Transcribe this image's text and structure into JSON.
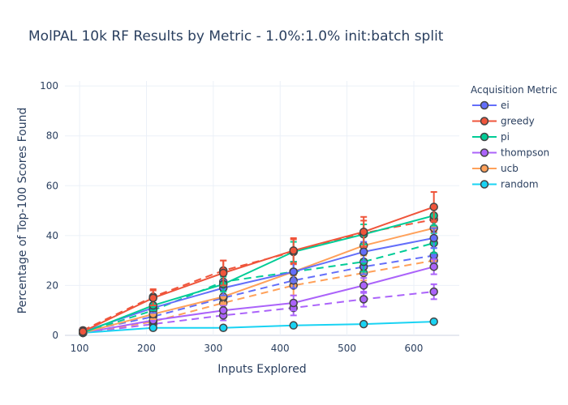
{
  "chart_data": {
    "type": "line",
    "title": "MolPAL 10k RF Results by Metric - 1.0%:1.0% init:batch split",
    "xlabel": "Inputs Explored",
    "ylabel": "Percentage of Top-100 Scores Found",
    "xlim": [
      78,
      668
    ],
    "ylim": [
      0,
      102
    ],
    "xticks": [
      100,
      200,
      300,
      400,
      500,
      600
    ],
    "yticks": [
      0,
      20,
      40,
      60,
      80,
      100
    ],
    "grid": true,
    "legend_title": "Acquisition Metric",
    "legend_position": "right",
    "x": [
      105,
      210,
      315,
      420,
      525,
      630
    ],
    "series": [
      {
        "name": "ei",
        "color": "#636efa",
        "solid": [
          1.5,
          11.0,
          19.0,
          25.5,
          33.5,
          39.0
        ],
        "solid_err": [
          1,
          2,
          3,
          4,
          4,
          4
        ],
        "dashed": [
          1.5,
          7.5,
          15.0,
          22.0,
          27.5,
          32.0
        ],
        "dashed_err": [
          1,
          2,
          3,
          3,
          3,
          3
        ]
      },
      {
        "name": "greedy",
        "color": "#ef553b",
        "solid": [
          1.5,
          15.0,
          25.0,
          34.0,
          41.5,
          51.5
        ],
        "solid_err": [
          1,
          3,
          5,
          5,
          6,
          6
        ],
        "dashed": [
          2.0,
          15.5,
          26.0,
          33.5,
          41.0,
          46.5
        ],
        "dashed_err": [
          1,
          3,
          4,
          5,
          5,
          5
        ]
      },
      {
        "name": "pi",
        "color": "#00cc96",
        "solid": [
          1.0,
          12.0,
          20.5,
          33.5,
          40.5,
          48.0
        ],
        "solid_err": [
          1,
          2,
          3,
          4,
          4,
          4
        ],
        "dashed": [
          1.0,
          10.0,
          21.5,
          25.5,
          29.5,
          37.0
        ],
        "dashed_err": [
          1,
          2,
          3,
          4,
          4,
          4
        ]
      },
      {
        "name": "thompson",
        "color": "#ab63fa",
        "solid": [
          1.0,
          6.0,
          10.0,
          13.0,
          20.0,
          27.5
        ],
        "solid_err": [
          0.5,
          2,
          2,
          3,
          3,
          3
        ],
        "dashed": [
          1.0,
          4.5,
          8.0,
          11.0,
          14.5,
          17.5
        ],
        "dashed_err": [
          0.5,
          1.5,
          2,
          3,
          3,
          3
        ]
      },
      {
        "name": "ucb",
        "color": "#ffa15a",
        "solid": [
          1.0,
          8.5,
          15.5,
          25.5,
          36.0,
          43.0
        ],
        "solid_err": [
          0.5,
          2,
          3,
          4,
          4,
          4
        ],
        "dashed": [
          1.0,
          5.5,
          13.0,
          20.0,
          25.0,
          30.0
        ],
        "dashed_err": [
          0.5,
          2,
          3,
          4,
          3,
          3
        ]
      },
      {
        "name": "random",
        "color": "#19d3f3",
        "solid": [
          1.0,
          3.0,
          3.0,
          4.0,
          4.5,
          5.5
        ],
        "solid_err": [
          0.5,
          0.5,
          0.5,
          0.5,
          0.5,
          0.5
        ],
        "dashed": null,
        "dashed_err": null
      }
    ]
  }
}
